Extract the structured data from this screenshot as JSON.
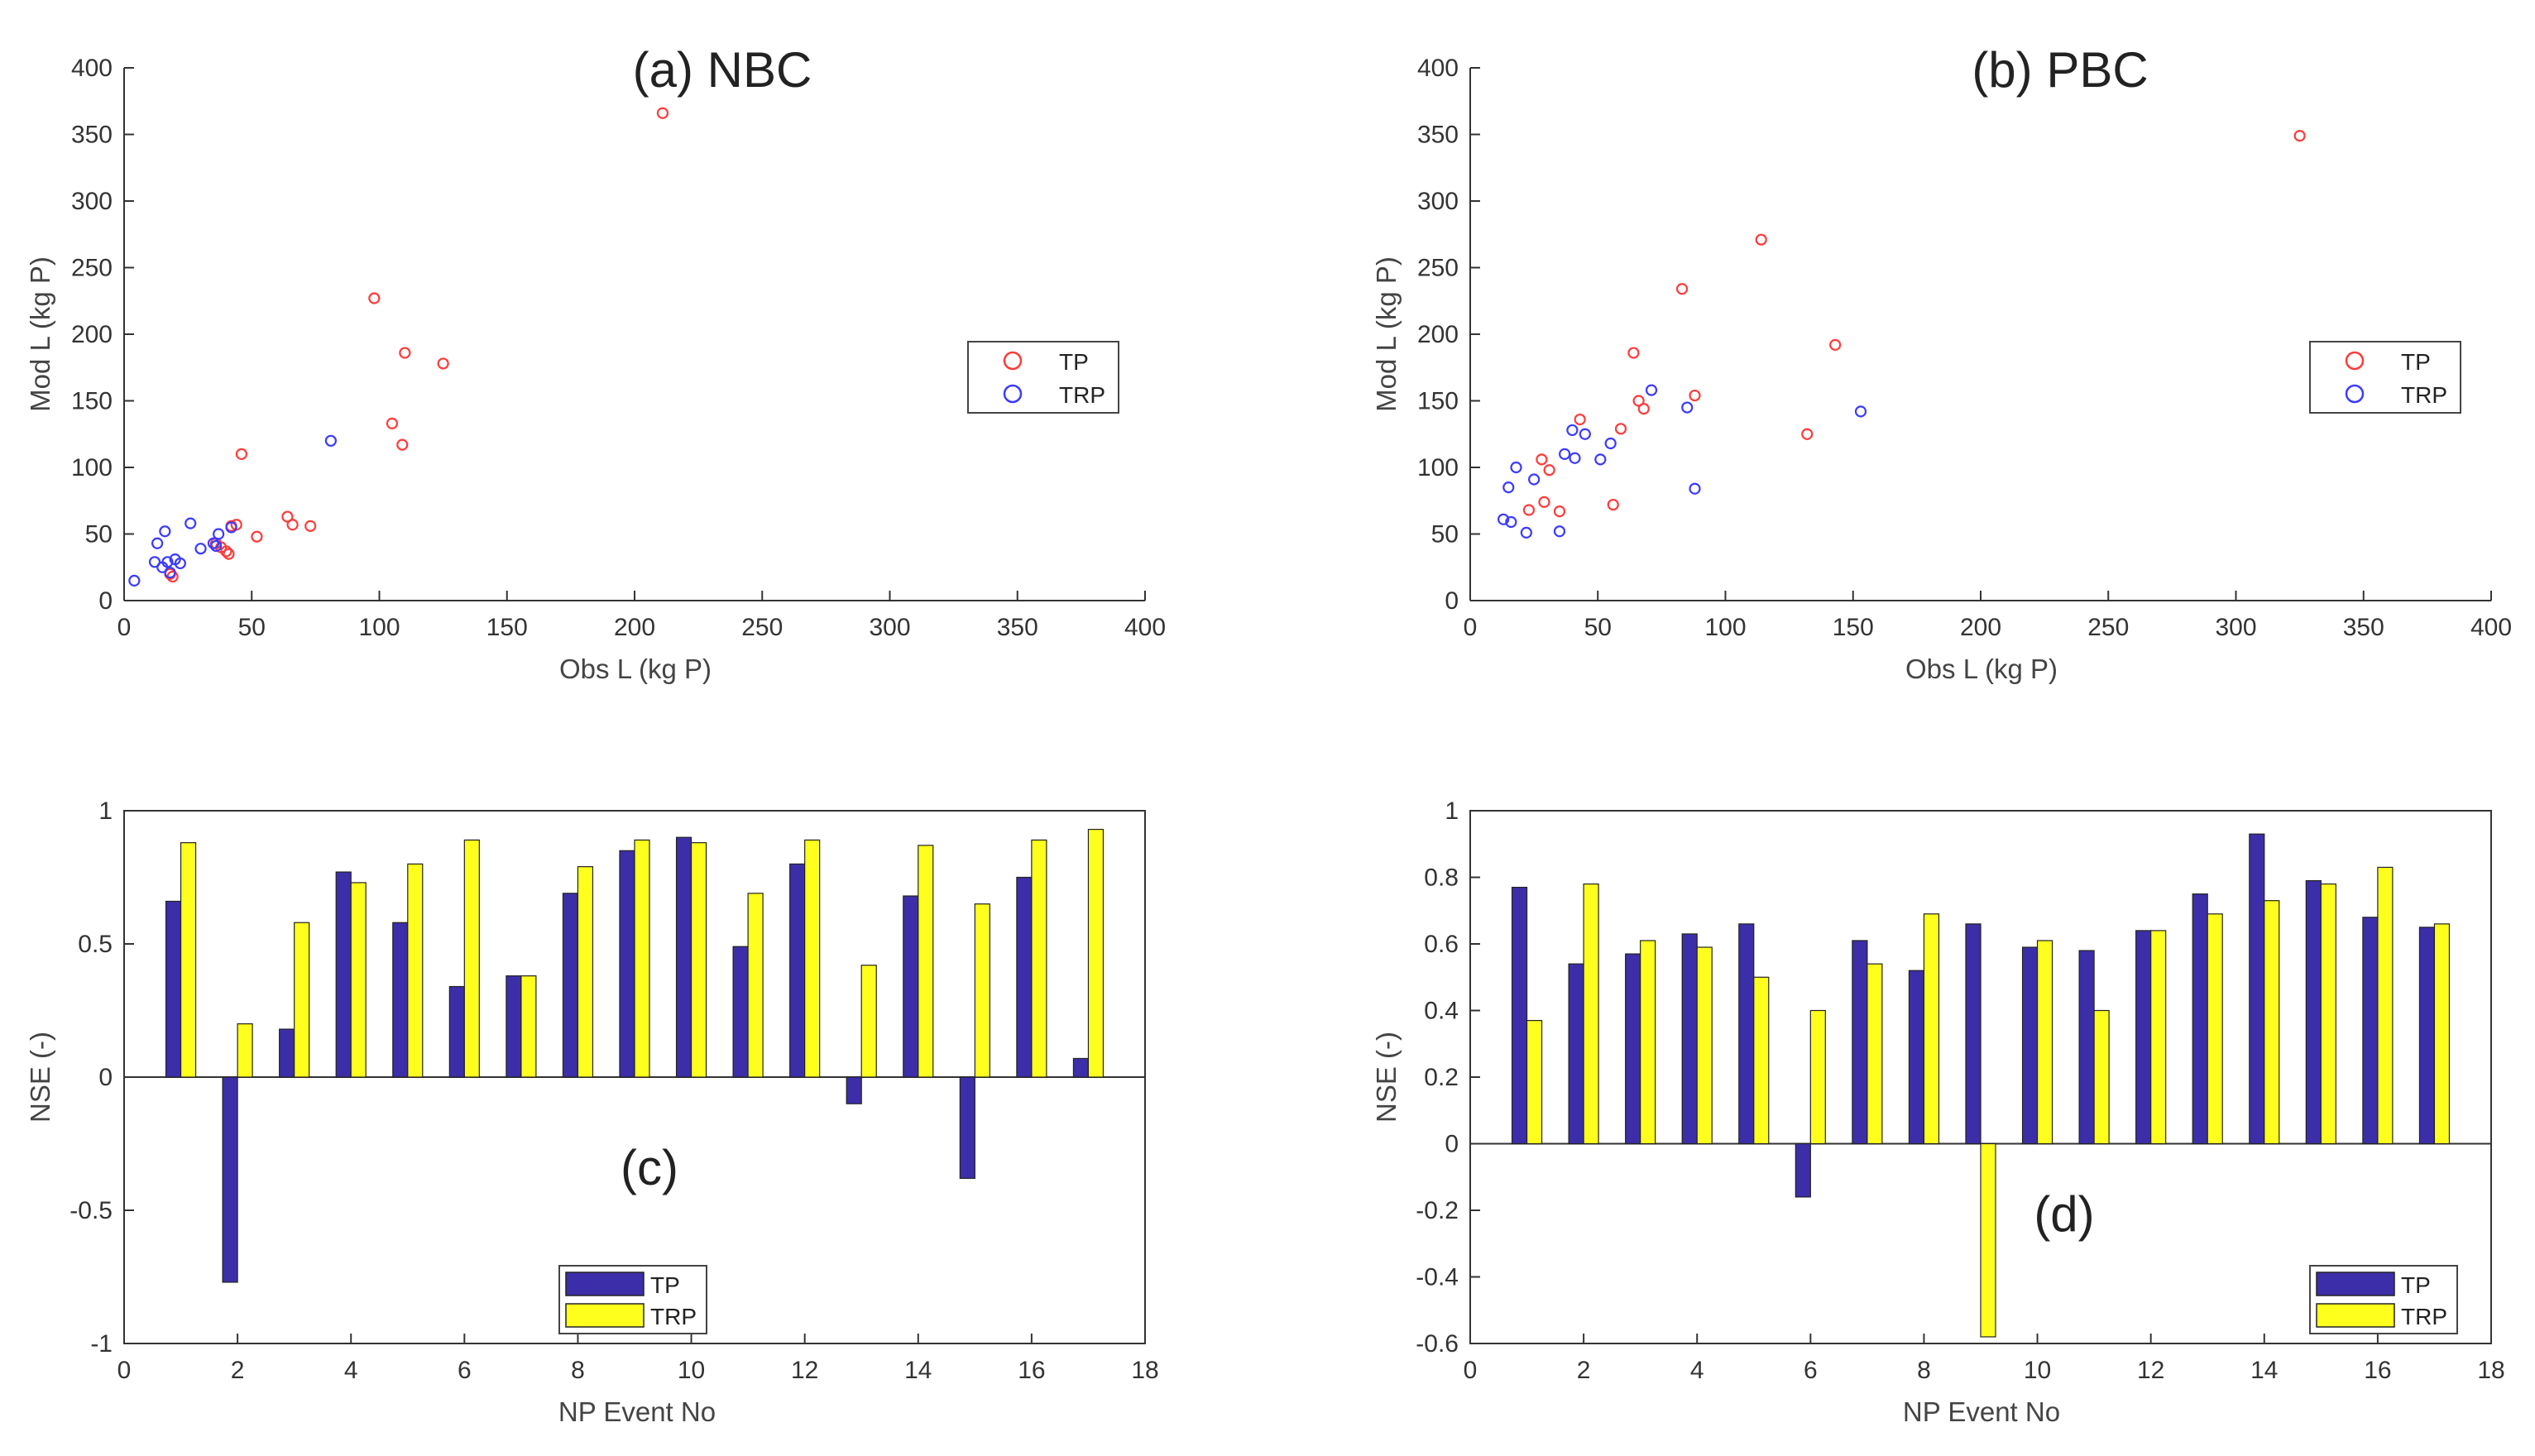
{
  "colors": {
    "tp_scatter": "#ff3b3b",
    "trp_scatter": "#3b3bff",
    "tp_bar": "#3c2ea8",
    "trp_bar": "#ffff1e",
    "axis": "#333333"
  },
  "chart_data": [
    {
      "id": "a",
      "type": "scatter",
      "title": "(a) NBC",
      "xlabel": "Obs L (kg P)",
      "ylabel": "Mod L (kg P)",
      "xlim": [
        0,
        400
      ],
      "ylim": [
        0,
        400
      ],
      "xticks": [
        0,
        50,
        100,
        150,
        200,
        250,
        300,
        350,
        400
      ],
      "yticks": [
        0,
        50,
        100,
        150,
        200,
        250,
        300,
        350,
        400
      ],
      "tick_labels_x": [
        "0",
        "50",
        "100",
        "150",
        "200",
        "250",
        "300",
        "350",
        "400"
      ],
      "tick_labels_y": [
        "0",
        "50",
        "100",
        "150",
        "200",
        "250",
        "300",
        "350",
        "400"
      ],
      "legend_loc": "right",
      "legend_labels": [
        "TP",
        "TRP"
      ],
      "series": [
        {
          "name": "TP",
          "x": [
            211,
            98,
            110,
            125,
            105,
            109,
            46,
            64,
            66,
            73,
            52,
            42,
            44,
            38,
            40,
            41,
            36,
            18,
            19
          ],
          "y": [
            366,
            227,
            186,
            178,
            133,
            117,
            110,
            63,
            57,
            56,
            48,
            56,
            57,
            40,
            37,
            35,
            43,
            20,
            18
          ]
        },
        {
          "name": "TRP",
          "x": [
            81,
            26,
            16,
            13,
            37,
            42,
            30,
            35,
            36,
            20,
            17,
            12,
            15,
            18,
            4,
            22
          ],
          "y": [
            120,
            58,
            52,
            43,
            50,
            55,
            39,
            43,
            41,
            31,
            29,
            29,
            25,
            21,
            15,
            28
          ]
        }
      ]
    },
    {
      "id": "b",
      "type": "scatter",
      "title": "(b) PBC",
      "xlabel": "Obs L (kg P)",
      "ylabel": "Mod L (kg P)",
      "xlim": [
        0,
        400
      ],
      "ylim": [
        0,
        400
      ],
      "xticks": [
        0,
        50,
        100,
        150,
        200,
        250,
        300,
        350,
        400
      ],
      "yticks": [
        0,
        50,
        100,
        150,
        200,
        250,
        300,
        350,
        400
      ],
      "tick_labels_x": [
        "0",
        "50",
        "100",
        "150",
        "200",
        "250",
        "300",
        "350",
        "400"
      ],
      "tick_labels_y": [
        "0",
        "50",
        "100",
        "150",
        "200",
        "250",
        "300",
        "350",
        "400"
      ],
      "legend_loc": "right",
      "legend_labels": [
        "TP",
        "TRP"
      ],
      "series": [
        {
          "name": "TP",
          "x": [
            325,
            114,
            83,
            143,
            64,
            88,
            66,
            68,
            132,
            43,
            59,
            28,
            31,
            56,
            35,
            23,
            29
          ],
          "y": [
            349,
            271,
            234,
            192,
            186,
            154,
            150,
            144,
            125,
            136,
            129,
            106,
            98,
            72,
            67,
            68,
            74
          ]
        },
        {
          "name": "TRP",
          "x": [
            71,
            153,
            85,
            88,
            40,
            45,
            55,
            37,
            41,
            51,
            25,
            18,
            15,
            13,
            16,
            22,
            35
          ],
          "y": [
            158,
            142,
            145,
            84,
            128,
            125,
            118,
            110,
            107,
            106,
            91,
            100,
            85,
            61,
            59,
            51,
            52
          ]
        }
      ]
    },
    {
      "id": "c",
      "type": "bar",
      "title": "(c)",
      "xlabel": "NP Event No",
      "ylabel": "NSE (-)",
      "xlim": [
        0,
        18
      ],
      "ylim": [
        -1,
        1
      ],
      "xticks": [
        0,
        2,
        4,
        6,
        8,
        10,
        12,
        14,
        16,
        18
      ],
      "yticks": [
        -1,
        -0.5,
        0,
        0.5,
        1
      ],
      "tick_labels_x": [
        "0",
        "2",
        "4",
        "6",
        "8",
        "10",
        "12",
        "14",
        "16",
        "18"
      ],
      "tick_labels_y": [
        "-1",
        "-0.5",
        "0",
        "0.5",
        "1"
      ],
      "legend_loc": "bottom-center",
      "categories": [
        1,
        2,
        3,
        4,
        5,
        6,
        7,
        8,
        9,
        10,
        11,
        12,
        13,
        14,
        15,
        16,
        17
      ],
      "series": [
        {
          "name": "TP",
          "values": [
            0.66,
            -0.77,
            0.18,
            0.77,
            0.58,
            0.34,
            0.38,
            0.69,
            0.85,
            0.9,
            0.49,
            0.8,
            -0.1,
            0.68,
            -0.38,
            0.75,
            0.07
          ]
        },
        {
          "name": "TRP",
          "values": [
            0.88,
            0.2,
            0.58,
            0.73,
            0.8,
            0.89,
            0.38,
            0.79,
            0.89,
            0.88,
            0.69,
            0.89,
            0.42,
            0.87,
            0.65,
            0.89,
            0.93
          ]
        }
      ]
    },
    {
      "id": "d",
      "type": "bar",
      "title": "(d)",
      "xlabel": "NP Event No",
      "ylabel": "NSE (-)",
      "xlim": [
        0,
        18
      ],
      "ylim": [
        -0.6,
        1
      ],
      "xticks": [
        0,
        2,
        4,
        6,
        8,
        10,
        12,
        14,
        16,
        18
      ],
      "yticks": [
        -0.6,
        -0.4,
        -0.2,
        0,
        0.2,
        0.4,
        0.6,
        0.8,
        1
      ],
      "tick_labels_x": [
        "0",
        "2",
        "4",
        "6",
        "8",
        "10",
        "12",
        "14",
        "16",
        "18"
      ],
      "tick_labels_y": [
        "-0.6",
        "-0.4",
        "-0.2",
        "0",
        "0.2",
        "0.4",
        "0.6",
        "0.8",
        "1"
      ],
      "legend_loc": "bottom-right",
      "categories": [
        1,
        2,
        3,
        4,
        5,
        6,
        7,
        8,
        9,
        10,
        11,
        12,
        13,
        14,
        15,
        16,
        17
      ],
      "series": [
        {
          "name": "TP",
          "values": [
            0.77,
            0.54,
            0.57,
            0.63,
            0.66,
            -0.16,
            0.61,
            0.52,
            0.66,
            0.59,
            0.58,
            0.64,
            0.75,
            0.93,
            0.79,
            0.68,
            0.65
          ]
        },
        {
          "name": "TRP",
          "values": [
            0.37,
            0.78,
            0.61,
            0.59,
            0.5,
            0.4,
            0.54,
            0.69,
            -0.58,
            0.61,
            0.4,
            0.64,
            0.69,
            0.73,
            0.78,
            0.83,
            0.66
          ]
        }
      ]
    }
  ]
}
